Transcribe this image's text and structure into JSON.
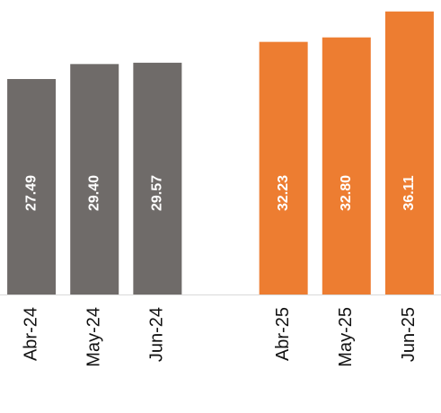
{
  "chart_data": {
    "type": "bar",
    "categories": [
      "Abr-24",
      "May-24",
      "Jun-24",
      null,
      "Abr-25",
      "May-25",
      "Jun-25"
    ],
    "values": [
      27.49,
      29.4,
      29.57,
      null,
      32.23,
      32.8,
      36.11
    ],
    "value_labels": [
      "27.49",
      "29.40",
      "29.57",
      null,
      "32.23",
      "32.80",
      "36.11"
    ],
    "colors": [
      "#6f6b69",
      "#6f6b69",
      "#6f6b69",
      null,
      "#ed7d31",
      "#ed7d31",
      "#ed7d31"
    ],
    "ylim": [
      0,
      37
    ]
  }
}
